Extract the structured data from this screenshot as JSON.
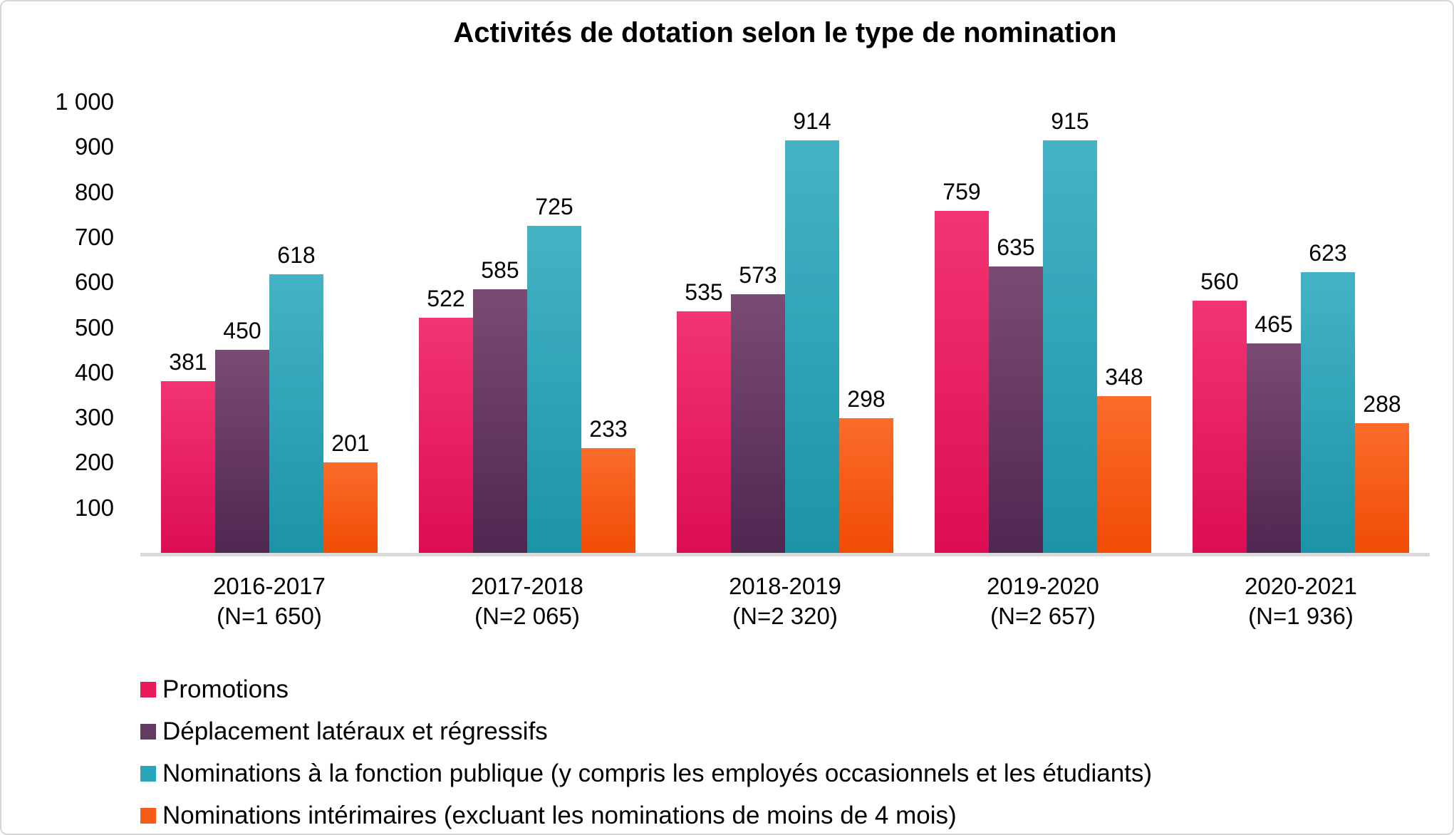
{
  "frame": {
    "background": "#FFFFFF",
    "border_color": "#D8D8D8"
  },
  "chart_data": {
    "type": "bar",
    "title": "Activités de dotation selon le type de nomination",
    "xlabel": "",
    "ylabel": "",
    "ylim": [
      0,
      1000
    ],
    "grid": false,
    "legend_position": "bottom-left",
    "axis_line_color": "#D9D9D9",
    "value_labels": true,
    "yticks": [
      {
        "value": 1000,
        "label": "1 000"
      },
      {
        "value": 900,
        "label": "900"
      },
      {
        "value": 800,
        "label": "800"
      },
      {
        "value": 700,
        "label": "700"
      },
      {
        "value": 600,
        "label": "600"
      },
      {
        "value": 500,
        "label": "500"
      },
      {
        "value": 400,
        "label": "400"
      },
      {
        "value": 300,
        "label": "300"
      },
      {
        "value": 200,
        "label": "200"
      },
      {
        "value": 100,
        "label": "100"
      }
    ],
    "categories": [
      {
        "line1": "2016-2017",
        "line2": "(N=1 650)"
      },
      {
        "line1": "2017-2018",
        "line2": "(N=2 065)"
      },
      {
        "line1": "2018-2019",
        "line2": "(N=2 320)"
      },
      {
        "line1": "2019-2020",
        "line2": "(N=2 657)"
      },
      {
        "line1": "2020-2021",
        "line2": "(N=1 936)"
      }
    ],
    "series": [
      {
        "name": "Promotions",
        "color": "#E91A5C",
        "color_top": "#F23472",
        "color_bottom": "#DC0D54",
        "values": [
          381,
          522,
          535,
          759,
          560
        ]
      },
      {
        "name": "Déplacement latéraux et régressifs",
        "color": "#633A60",
        "color_top": "#7B4B74",
        "color_bottom": "#4F2750",
        "values": [
          450,
          585,
          573,
          635,
          465
        ]
      },
      {
        "name": "Nominations à la fonction publique (y compris les employés occasionnels et les étudiants)",
        "color": "#2AA4B8",
        "color_top": "#44B3C5",
        "color_bottom": "#1C93A7",
        "values": [
          618,
          725,
          914,
          915,
          623
        ]
      },
      {
        "name": "Nominations intérimaires (excluant les nominations de moins de 4 mois)",
        "color": "#F85A17",
        "color_top": "#FB6C2A",
        "color_bottom": "#F04C05",
        "values": [
          201,
          233,
          298,
          348,
          288
        ]
      }
    ]
  }
}
